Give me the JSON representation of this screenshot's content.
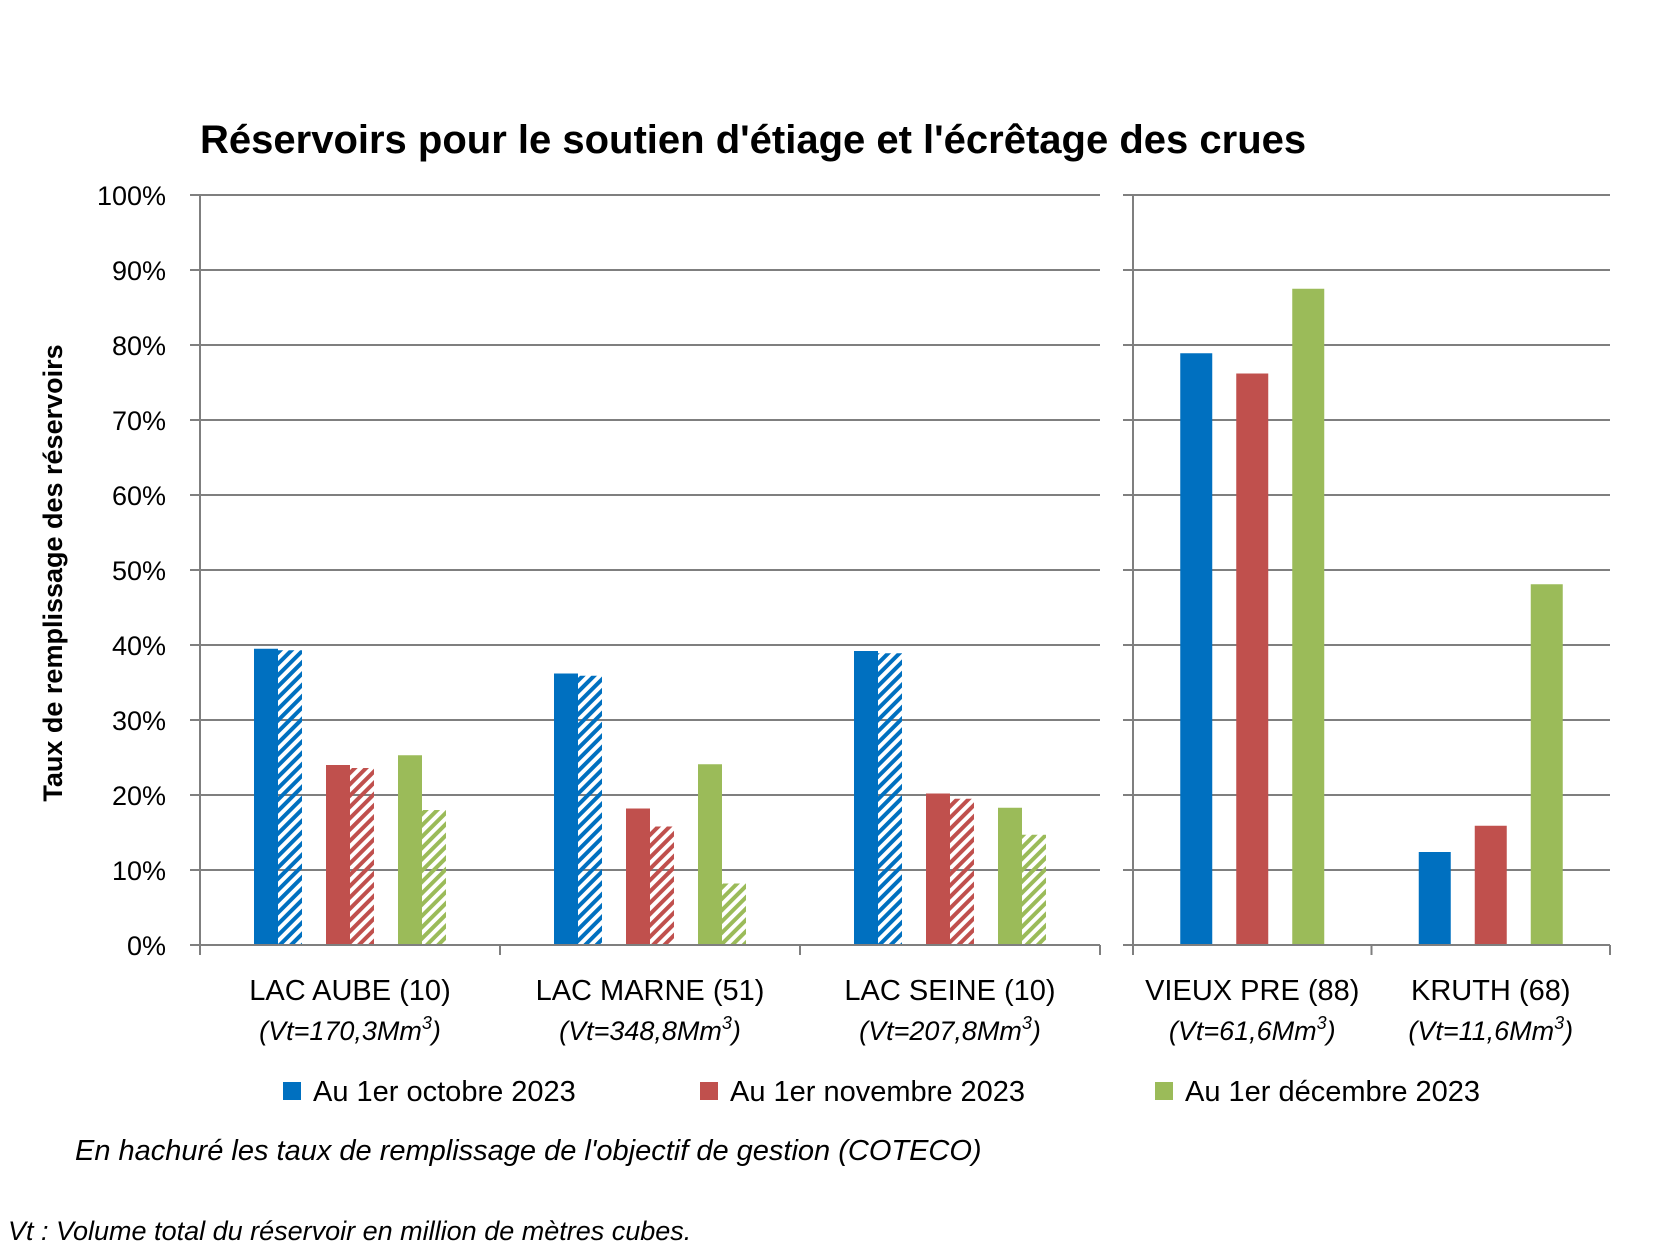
{
  "chart_data": {
    "type": "bar",
    "title": "Réservoirs pour le soutien d'étiage et l'écrêtage des crues",
    "ylabel": "Taux de remplissage des réservoirs",
    "ylim": [
      0,
      100
    ],
    "yticks": [
      "0%",
      "10%",
      "20%",
      "30%",
      "40%",
      "50%",
      "60%",
      "70%",
      "80%",
      "90%",
      "100%"
    ],
    "grid": true,
    "legend_position": "bottom",
    "groups": [
      {
        "reservoirs": [
          {
            "name": "LAC AUBE (10)",
            "vt_prefix": "(Vt=170,3Mm",
            "vt_sup": "3",
            "vt_suffix": ")"
          },
          {
            "name": "LAC MARNE (51)",
            "vt_prefix": "(Vt=348,8Mm",
            "vt_sup": "3",
            "vt_suffix": ")"
          },
          {
            "name": "LAC SEINE (10)",
            "vt_prefix": "(Vt=207,8Mm",
            "vt_sup": "3",
            "vt_suffix": ")"
          }
        ]
      },
      {
        "reservoirs": [
          {
            "name": "VIEUX PRE (88)",
            "vt_prefix": "(Vt=61,6Mm",
            "vt_sup": "3",
            "vt_suffix": ")"
          },
          {
            "name": "KRUTH (68)",
            "vt_prefix": "(Vt=11,6Mm",
            "vt_sup": "3",
            "vt_suffix": ")"
          }
        ]
      }
    ],
    "series": [
      {
        "name": "Au 1er octobre 2023",
        "color": "#0070C0",
        "values": [
          39.5,
          36.2,
          39.2,
          78.9,
          12.4
        ]
      },
      {
        "name": "Au 1er novembre 2023",
        "color": "#C0504D",
        "values": [
          24.0,
          18.2,
          20.2,
          76.2,
          15.9
        ]
      },
      {
        "name": "Au 1er décembre 2023",
        "color": "#9BBB59",
        "values": [
          25.3,
          24.1,
          18.3,
          87.5,
          48.1
        ]
      }
    ],
    "objective_series": [
      {
        "values": [
          39.3,
          35.9,
          38.9
        ]
      },
      {
        "values": [
          23.6,
          15.8,
          19.5
        ]
      },
      {
        "values": [
          18.0,
          8.2,
          14.7
        ]
      }
    ],
    "annotations": [
      "En hachuré les taux de remplissage de l'objectif de gestion (COTECO)",
      "Vt : Volume total du réservoir en million de mètres cubes."
    ]
  }
}
